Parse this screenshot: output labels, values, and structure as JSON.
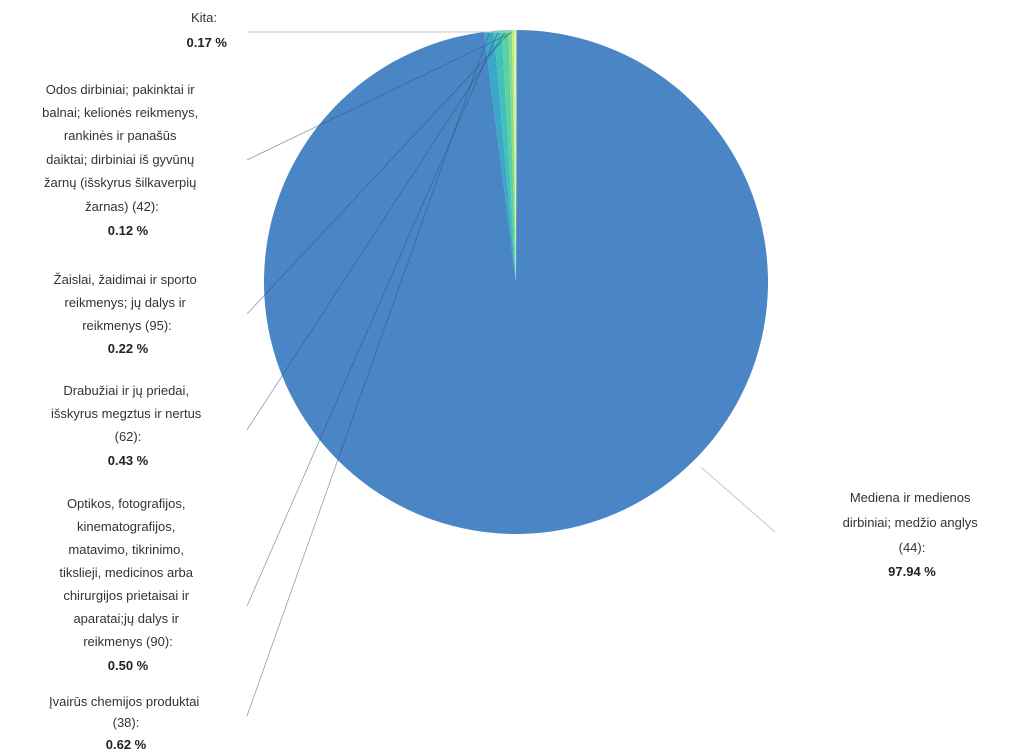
{
  "chart_data": {
    "type": "pie",
    "slices": [
      {
        "label": "Mediena ir medienos dirbiniai; medžio anglys (44):",
        "value": 97.94,
        "value_text": "97.94 %",
        "color": "#4a86c5"
      },
      {
        "label": "Įvairūs chemijos produktai (38):",
        "value": 0.62,
        "value_text": "0.62 %",
        "color": "#3ba7c9"
      },
      {
        "label": "Optikos, fotografijos, kinematografijos, matavimo, tikrinimo, tikslieji, medicinos arba chirurgijos prietaisai ir aparatai;jų dalys ir reikmenys (90):",
        "value": 0.5,
        "value_text": "0.50 %",
        "color": "#41c2b9"
      },
      {
        "label": "Drabužiai ir jų priedai, išskyrus megztus ir nertus (62):",
        "value": 0.43,
        "value_text": "0.43 %",
        "color": "#5ad0a3"
      },
      {
        "label": "Žaislai, žaidimai ir sporto reikmenys; jų dalys ir reikmenys (95):",
        "value": 0.22,
        "value_text": "0.22 %",
        "color": "#86dc8e"
      },
      {
        "label": "Odos dirbiniai; pakinktai ir balnai; kelionės reikmenys, rankinės ir panašūs daiktai; dirbiniai iš gyvūnų žarnų (išskyrus šilkaverpių žarnas) (42):",
        "value": 0.12,
        "value_text": "0.12 %",
        "color": "#b8e987"
      },
      {
        "label": "Kita:",
        "value": 0.17,
        "value_text": "0.17 %",
        "color": "#e3f39a"
      }
    ]
  }
}
